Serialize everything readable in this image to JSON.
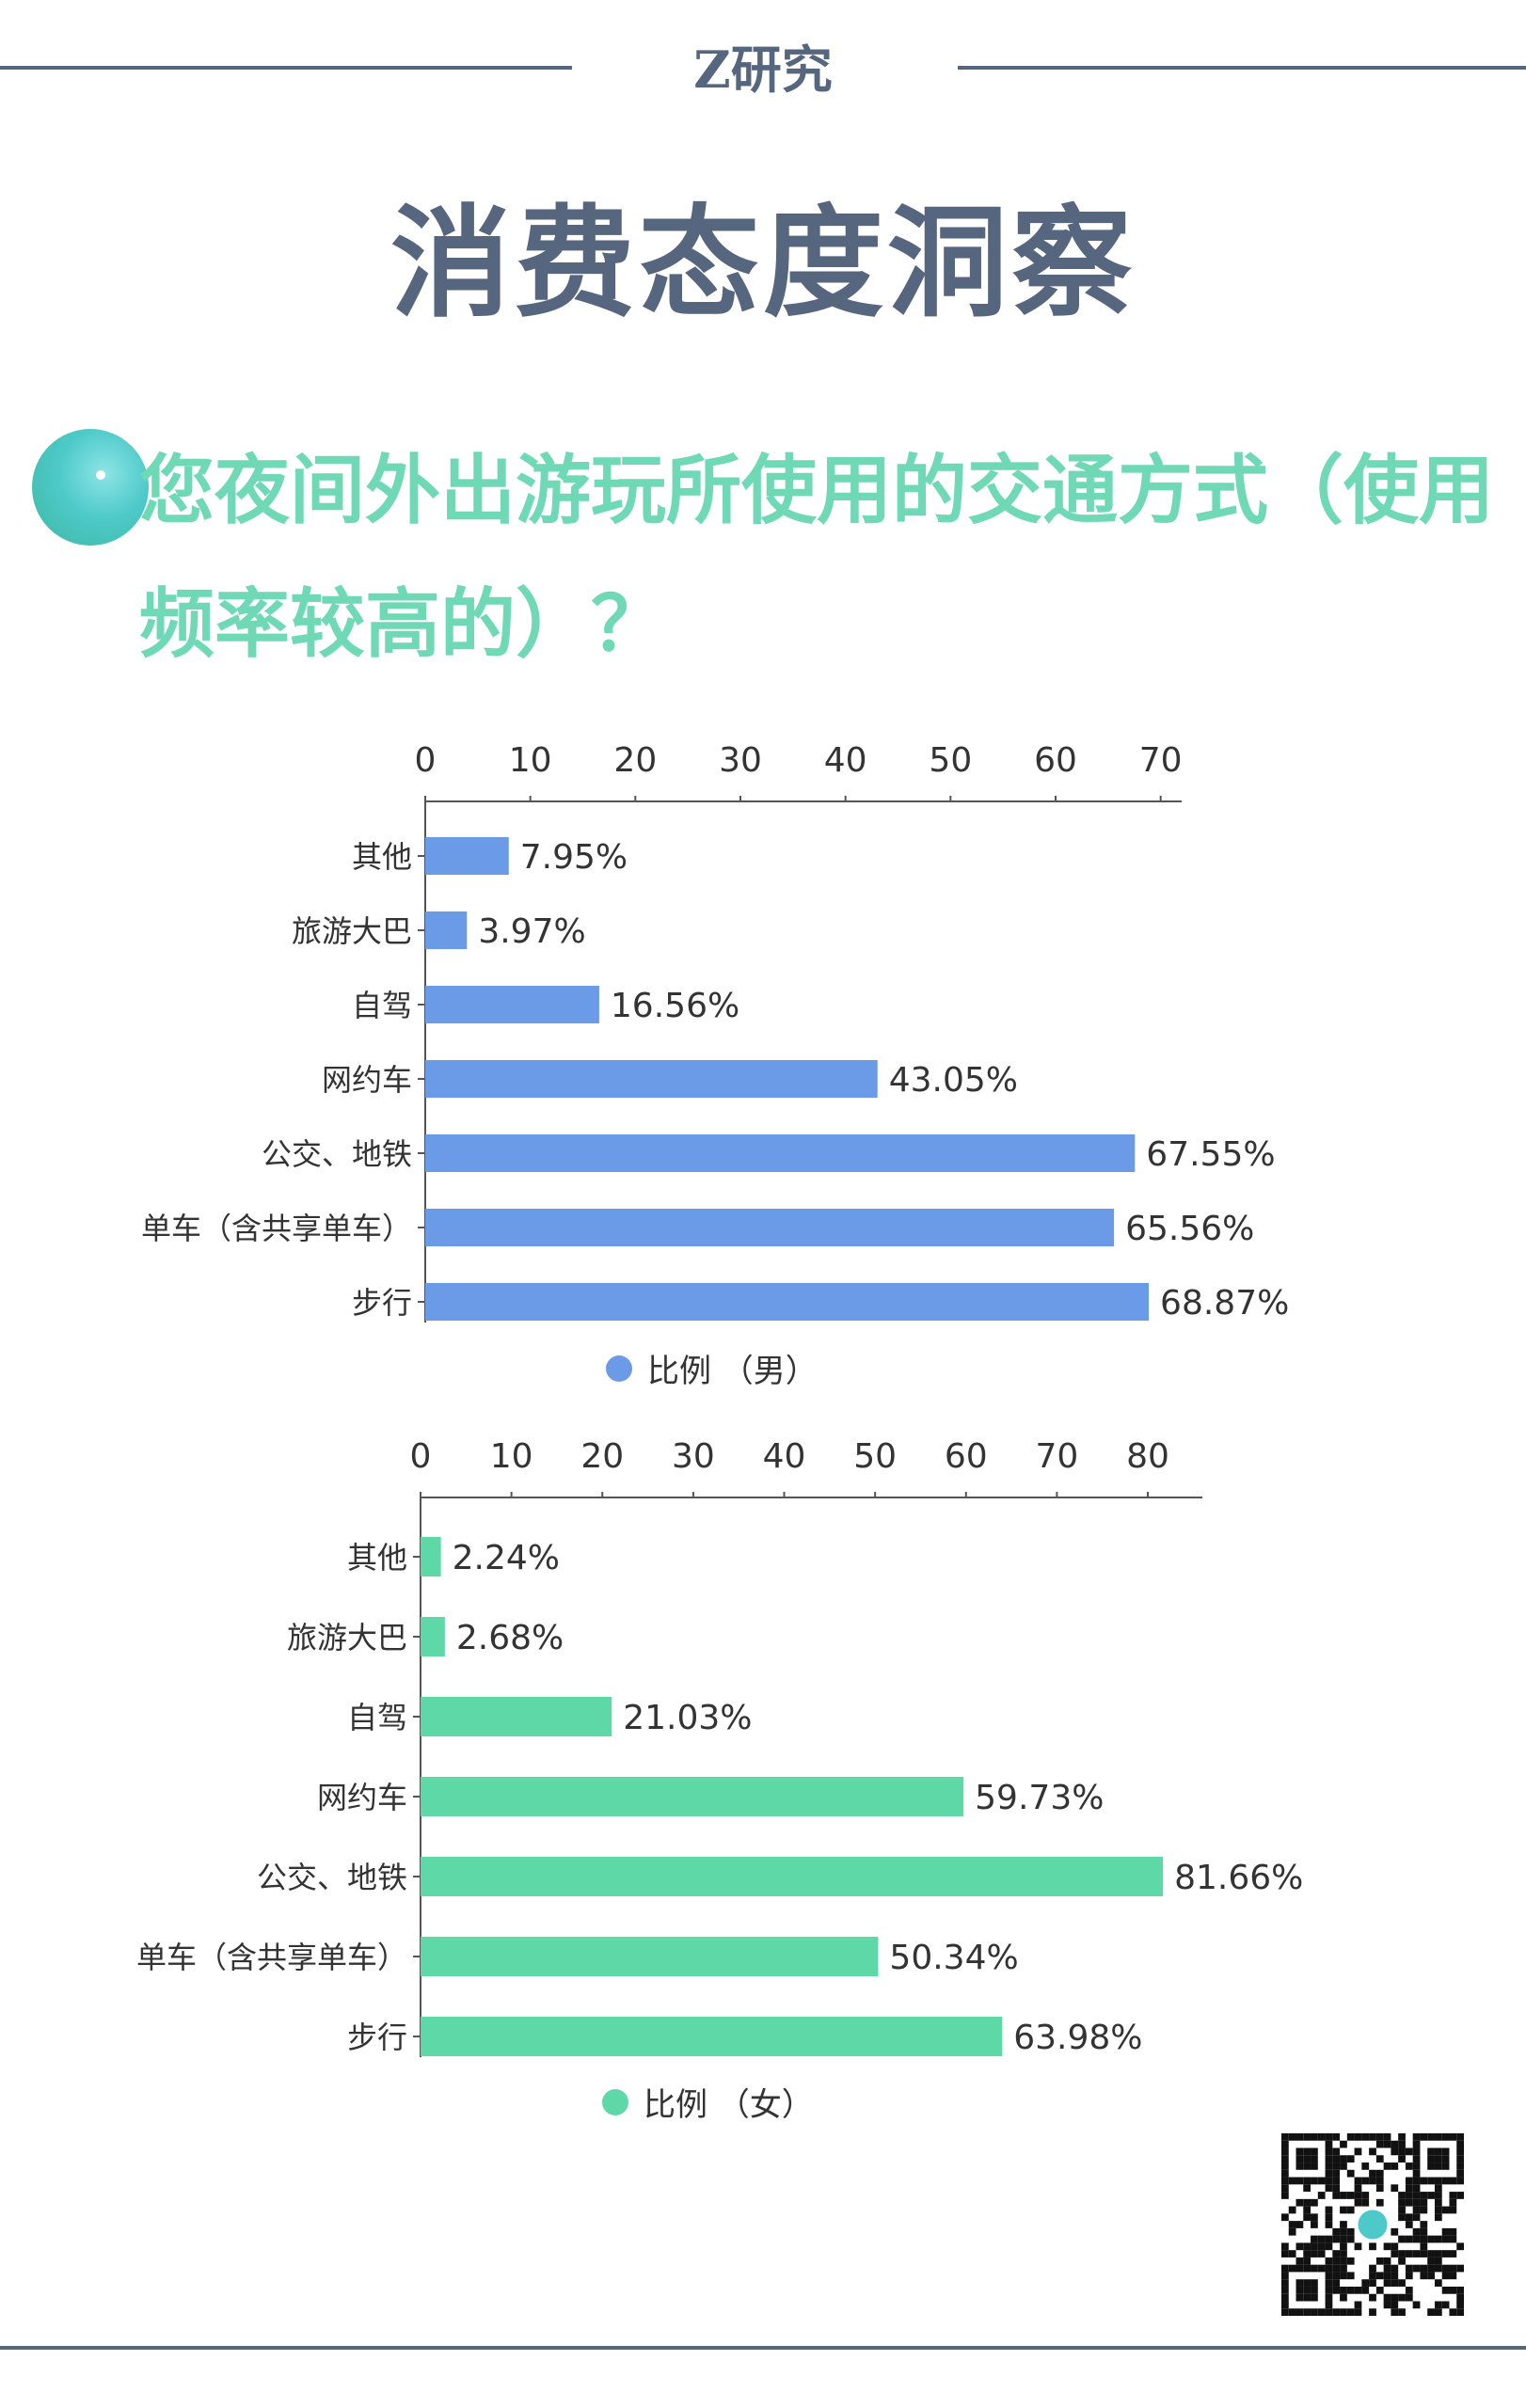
{
  "header": {
    "brand": "Z研究"
  },
  "title": "消费态度洞察",
  "question": "您夜间外出游玩所使用的交通方式（使用频率较高的）？",
  "colors": {
    "header": "#56667f",
    "question": "#6fd9b6",
    "male": "#6b9be6",
    "female": "#5fd8a8"
  },
  "chart_data": [
    {
      "type": "bar",
      "orientation": "horizontal",
      "categories": [
        "其他",
        "旅游大巴",
        "自驾",
        "网约车",
        "公交、地铁",
        "单车（含共享单车）",
        "步行"
      ],
      "series": [
        {
          "name": "比例 （男）",
          "values": [
            7.95,
            3.97,
            16.56,
            43.05,
            67.55,
            65.56,
            68.87
          ]
        }
      ],
      "labels": [
        "7.95%",
        "3.97%",
        "16.56%",
        "43.05%",
        "67.55%",
        "65.56%",
        "68.87%"
      ],
      "ticks": [
        "0",
        "10",
        "20",
        "30",
        "40",
        "50",
        "60",
        "70"
      ],
      "xlim": [
        0,
        72
      ],
      "axis_position": "top",
      "legend": "bottom",
      "grid": false,
      "color": "#6b9be6"
    },
    {
      "type": "bar",
      "orientation": "horizontal",
      "categories": [
        "其他",
        "旅游大巴",
        "自驾",
        "网约车",
        "公交、地铁",
        "单车（含共享单车）",
        "步行"
      ],
      "series": [
        {
          "name": "比例 （女）",
          "values": [
            2.24,
            2.68,
            21.03,
            59.73,
            81.66,
            50.34,
            63.98
          ]
        }
      ],
      "labels": [
        "2.24%",
        "2.68%",
        "21.03%",
        "59.73%",
        "81.66%",
        "50.34%",
        "63.98%"
      ],
      "ticks": [
        "0",
        "10",
        "20",
        "30",
        "40",
        "50",
        "60",
        "70",
        "80"
      ],
      "xlim": [
        0,
        86
      ],
      "axis_position": "top",
      "legend": "bottom",
      "grid": false,
      "color": "#5fd8a8"
    }
  ]
}
